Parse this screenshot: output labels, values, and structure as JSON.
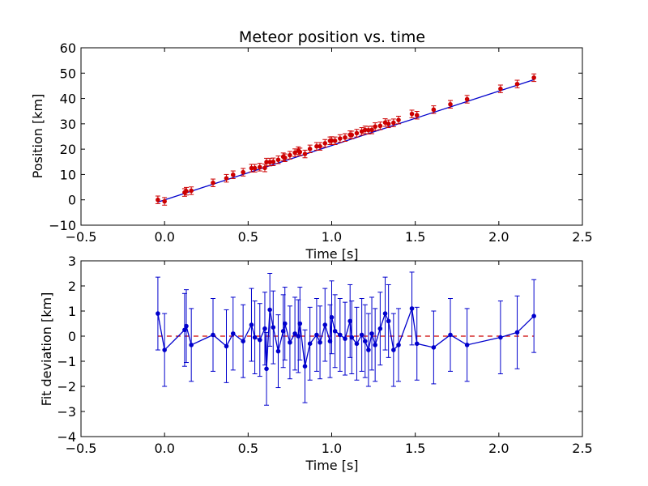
{
  "chart_data": [
    {
      "type": "line",
      "title": "Meteor position vs. time",
      "xlabel": "Time [s]",
      "ylabel": "Position [km]",
      "xlim": [
        -0.5,
        2.5
      ],
      "ylim": [
        -10,
        60
      ],
      "xticks": [
        "−0.5",
        "0.0",
        "0.5",
        "1.0",
        "1.5",
        "2.0",
        "2.5"
      ],
      "yticks": [
        "−10",
        "0",
        "10",
        "20",
        "30",
        "40",
        "50",
        "60"
      ],
      "xtick_values": [
        -0.5,
        0.0,
        0.5,
        1.0,
        1.5,
        2.0,
        2.5
      ],
      "ytick_values": [
        -10,
        0,
        10,
        20,
        30,
        40,
        50,
        60
      ],
      "grid": false,
      "series": [
        {
          "kind": "errorbar-points",
          "color": "#cc0000",
          "x": [
            -0.04,
            0.0,
            0.12,
            0.13,
            0.16,
            0.29,
            0.37,
            0.41,
            0.47,
            0.52,
            0.54,
            0.57,
            0.6,
            0.61,
            0.63,
            0.65,
            0.68,
            0.71,
            0.72,
            0.75,
            0.78,
            0.8,
            0.81,
            0.84,
            0.87,
            0.91,
            0.93,
            0.96,
            0.99,
            1.0,
            1.02,
            1.05,
            1.08,
            1.11,
            1.12,
            1.15,
            1.18,
            1.2,
            1.22,
            1.24,
            1.26,
            1.29,
            1.32,
            1.34,
            1.37,
            1.4,
            1.48,
            1.51,
            1.61,
            1.71,
            1.81,
            2.01,
            2.11,
            2.21
          ],
          "y": [
            0.0,
            -0.6,
            2.9,
            3.4,
            3.6,
            6.7,
            8.5,
            9.9,
            10.9,
            12.5,
            12.5,
            12.9,
            12.6,
            14.9,
            14.9,
            15.0,
            15.8,
            17.0,
            16.6,
            17.6,
            18.6,
            19.4,
            18.9,
            18.1,
            20.1,
            21.1,
            21.1,
            22.3,
            23.3,
            23.4,
            23.3,
            24.2,
            24.6,
            25.7,
            25.6,
            26.3,
            27.0,
            27.6,
            27.5,
            27.6,
            28.9,
            29.2,
            30.5,
            30.0,
            30.4,
            31.5,
            33.9,
            33.4,
            35.6,
            37.7,
            39.7,
            43.8,
            45.7,
            48.2
          ],
          "yerr": 1.5
        },
        {
          "kind": "fit-line",
          "color": "#0000cc",
          "x": [
            -0.04,
            2.21
          ],
          "y": [
            -0.9,
            47.4
          ]
        }
      ]
    },
    {
      "type": "line",
      "title": "",
      "xlabel": "Time [s]",
      "ylabel": "Fit deviation [km]",
      "xlim": [
        -0.5,
        2.5
      ],
      "ylim": [
        -4,
        3
      ],
      "xticks": [
        "−0.5",
        "0.0",
        "0.5",
        "1.0",
        "1.5",
        "2.0",
        "2.5"
      ],
      "yticks": [
        "−4",
        "−3",
        "−2",
        "−1",
        "0",
        "1",
        "2",
        "3"
      ],
      "xtick_values": [
        -0.5,
        0.0,
        0.5,
        1.0,
        1.5,
        2.0,
        2.5
      ],
      "ytick_values": [
        -4,
        -3,
        -2,
        -1,
        0,
        1,
        2,
        3
      ],
      "grid": false,
      "series": [
        {
          "kind": "errorbar-line",
          "color": "#0000cc",
          "x": [
            -0.04,
            0.0,
            0.12,
            0.13,
            0.16,
            0.29,
            0.37,
            0.41,
            0.47,
            0.52,
            0.54,
            0.57,
            0.6,
            0.61,
            0.63,
            0.65,
            0.68,
            0.71,
            0.72,
            0.75,
            0.78,
            0.8,
            0.81,
            0.84,
            0.87,
            0.91,
            0.93,
            0.96,
            0.99,
            1.0,
            1.02,
            1.05,
            1.08,
            1.11,
            1.12,
            1.15,
            1.18,
            1.2,
            1.22,
            1.24,
            1.26,
            1.29,
            1.32,
            1.34,
            1.37,
            1.4,
            1.48,
            1.51,
            1.61,
            1.71,
            1.81,
            2.01,
            2.11,
            2.21
          ],
          "y": [
            0.9,
            -0.55,
            0.25,
            0.4,
            -0.35,
            0.05,
            -0.4,
            0.1,
            -0.2,
            0.45,
            -0.05,
            -0.15,
            0.3,
            -1.3,
            1.05,
            0.35,
            -0.6,
            0.2,
            0.5,
            -0.25,
            0.1,
            0.0,
            0.5,
            -1.2,
            -0.3,
            0.05,
            -0.25,
            0.45,
            -0.2,
            0.75,
            0.2,
            0.05,
            -0.1,
            0.6,
            -0.05,
            -0.3,
            0.05,
            -0.2,
            -0.55,
            0.1,
            -0.35,
            0.3,
            0.9,
            0.6,
            -0.55,
            -0.35,
            1.1,
            -0.3,
            -0.45,
            0.05,
            -0.35,
            -0.05,
            0.15,
            0.8
          ],
          "yerr": 1.45
        },
        {
          "kind": "zero-line",
          "color": "#cc0000",
          "style": "dashed",
          "x": [
            -0.04,
            2.21
          ],
          "y": [
            0,
            0
          ]
        }
      ]
    }
  ]
}
